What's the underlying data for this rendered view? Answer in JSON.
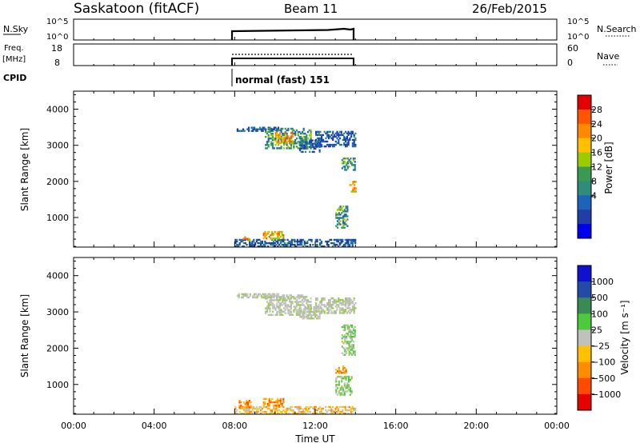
{
  "header": {
    "station": "Saskatoon (fitACF)",
    "beam": "Beam 11",
    "date": "26/Feb/2015"
  },
  "noise_panel": {
    "left_label": "N.Sky",
    "right_label": "N.Search",
    "ticks": [
      "10^5",
      "10^0"
    ]
  },
  "freq_panel": {
    "left_label_1": "Freq.",
    "left_label_2": "[MHz]",
    "left_ticks": [
      "18",
      "8"
    ],
    "right_ticks": [
      "60",
      "0"
    ],
    "right_label": "Nave"
  },
  "cpid": {
    "label": "CPID",
    "mode": "normal (fast) 151"
  },
  "chart_data": [
    {
      "type": "heatmap",
      "name": "power",
      "title": "",
      "xlabel": "",
      "ylabel": "Slant Range [km]",
      "xlim": [
        0,
        24
      ],
      "ylim": [
        180,
        4500
      ],
      "yticks": [
        1000,
        2000,
        3000,
        4000
      ],
      "colorbar": {
        "label": "Power [dB]",
        "ticks": [
          "28",
          "24",
          "20",
          "16",
          "12",
          "8",
          "4"
        ],
        "colors": [
          "#e30000",
          "#ff5500",
          "#ff8a00",
          "#ffc000",
          "#9ccc00",
          "#3a9a52",
          "#2f8c7a",
          "#1d63b8",
          "#1f3fa6",
          "#0000ee"
        ]
      },
      "echo_regions": [
        {
          "t_start": 8.1,
          "t_end": 10.2,
          "r_start": 3380,
          "r_end": 3500,
          "level": "low"
        },
        {
          "t_start": 9.5,
          "t_end": 11.8,
          "r_start": 2900,
          "r_end": 3450,
          "level": "medium"
        },
        {
          "t_start": 10.0,
          "t_end": 10.9,
          "r_start": 3050,
          "r_end": 3350,
          "level": "high"
        },
        {
          "t_start": 11.2,
          "t_end": 12.2,
          "r_start": 2800,
          "r_end": 3150,
          "level": "low"
        },
        {
          "t_start": 12.0,
          "t_end": 14.0,
          "r_start": 2950,
          "r_end": 3400,
          "level": "low"
        },
        {
          "t_start": 13.3,
          "t_end": 14.0,
          "r_start": 2300,
          "r_end": 2650,
          "level": "medium"
        },
        {
          "t_start": 13.7,
          "t_end": 14.0,
          "r_start": 1700,
          "r_end": 2000,
          "level": "high"
        },
        {
          "t_start": 13.0,
          "t_end": 13.6,
          "r_start": 700,
          "r_end": 1300,
          "level": "medium"
        },
        {
          "t_start": 8.0,
          "t_end": 14.0,
          "r_start": 180,
          "r_end": 400,
          "level": "low"
        },
        {
          "t_start": 8.4,
          "t_end": 8.7,
          "r_start": 300,
          "r_end": 450,
          "level": "high"
        },
        {
          "t_start": 9.4,
          "t_end": 10.4,
          "r_start": 400,
          "r_end": 600,
          "level": "high"
        }
      ]
    },
    {
      "type": "heatmap",
      "name": "velocity",
      "title": "",
      "xlabel": "Time UT",
      "ylabel": "Slant Range [km]",
      "xlim": [
        0,
        24
      ],
      "ylim": [
        180,
        4500
      ],
      "xticks": [
        "00:00",
        "04:00",
        "08:00",
        "12:00",
        "16:00",
        "20:00",
        "00:00"
      ],
      "yticks": [
        1000,
        2000,
        3000,
        4000
      ],
      "colorbar": {
        "label": "Velocity [m s⁻¹]",
        "ticks": [
          "1000",
          "500",
          "100",
          "25",
          "−25",
          "−100",
          "−500",
          "−1000"
        ],
        "colors": [
          "#1010d0",
          "#244aa8",
          "#3a8a55",
          "#4ec83c",
          "#c0c0bc",
          "#ffc000",
          "#ff8c00",
          "#ff4a00",
          "#e60000"
        ]
      },
      "echo_regions": [
        {
          "t_start": 8.1,
          "t_end": 10.2,
          "r_start": 3380,
          "r_end": 3500,
          "level": "grey"
        },
        {
          "t_start": 9.5,
          "t_end": 11.8,
          "r_start": 2900,
          "r_end": 3450,
          "level": "grey"
        },
        {
          "t_start": 11.2,
          "t_end": 12.2,
          "r_start": 2800,
          "r_end": 3150,
          "level": "grey"
        },
        {
          "t_start": 12.0,
          "t_end": 14.0,
          "r_start": 2950,
          "r_end": 3400,
          "level": "grey"
        },
        {
          "t_start": 13.3,
          "t_end": 14.0,
          "r_start": 1800,
          "r_end": 2650,
          "level": "green"
        },
        {
          "t_start": 13.0,
          "t_end": 13.5,
          "r_start": 1300,
          "r_end": 1500,
          "level": "orange"
        },
        {
          "t_start": 13.0,
          "t_end": 13.8,
          "r_start": 700,
          "r_end": 1200,
          "level": "green"
        },
        {
          "t_start": 8.0,
          "t_end": 14.0,
          "r_start": 180,
          "r_end": 400,
          "level": "yellow"
        },
        {
          "t_start": 8.2,
          "t_end": 8.8,
          "r_start": 350,
          "r_end": 550,
          "level": "orange"
        },
        {
          "t_start": 9.4,
          "t_end": 10.4,
          "r_start": 400,
          "r_end": 600,
          "level": "orange"
        }
      ]
    }
  ]
}
